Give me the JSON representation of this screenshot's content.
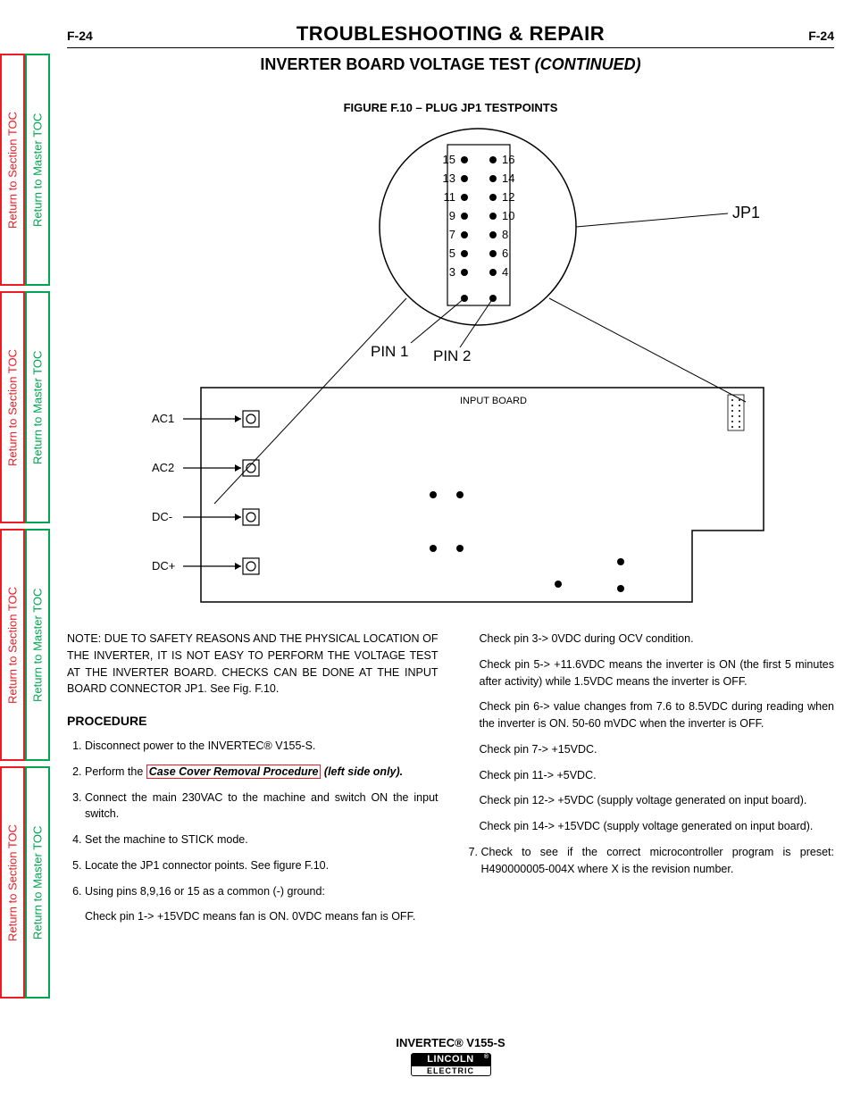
{
  "page_number": "F-24",
  "header_title": "TROUBLESHOOTING & REPAIR",
  "subtitle_main": "INVERTER BOARD VOLTAGE TEST ",
  "subtitle_cont": "(CONTINUED)",
  "figure_caption": "FIGURE F.10 – PLUG JP1 TESTPOINTS",
  "side_tabs": {
    "section": "Return to Section TOC",
    "master": "Return to Master TOC"
  },
  "diagram": {
    "jp1_label": "JP1",
    "pin1_label": "PIN 1",
    "pin2_label": "PIN 2",
    "input_board_label": "INPUT BOARD",
    "terminals": [
      "AC1",
      "AC2",
      "DC-",
      "DC+"
    ],
    "pin_numbers_left": [
      "15",
      "13",
      "11",
      "9",
      "7",
      "5",
      "3"
    ],
    "pin_numbers_right": [
      "16",
      "14",
      "12",
      "10",
      "8",
      "6",
      "4"
    ]
  },
  "note": {
    "label": "NOTE:",
    "text": "DUE TO SAFETY REASONS AND THE PHYSICAL LOCATION OF THE INVERTER, IT IS NOT EASY TO PERFORM THE VOLTAGE TEST AT THE INVERTER BOARD. CHECKS CAN BE DONE AT THE INPUT BOARD CONNECTOR JP1. See Fig. F.10."
  },
  "procedure_heading": "PROCEDURE",
  "procedure": {
    "s1": "Disconnect power to the INVERTEC® V155-S.",
    "s2a": "Perform the ",
    "s2_link": "Case Cover Removal Procedure",
    "s2b": " (left side only).",
    "s3": "Connect the main 230VAC to the machine and switch ON the input switch.",
    "s4": "Set the machine to STICK mode.",
    "s5": "Locate the JP1 connector points. See figure F.10.",
    "s6": "Using pins 8,9,16 or 15 as a common (-) ground:",
    "s6_sub": "Check pin 1-> +15VDC means fan is ON.  0VDC means fan is OFF."
  },
  "checks": {
    "c3": "Check pin 3->  0VDC during OCV condition.",
    "c5": "Check pin 5-> +11.6VDC means the inverter is ON (the first 5 minutes after activity) while 1.5VDC means the inverter is OFF.",
    "c6": "Check pin 6-> value changes from 7.6 to 8.5VDC during reading when the inverter is ON.  50-60 mVDC when the inverter is OFF.",
    "c7": "Check pin 7-> +15VDC.",
    "c11": "Check pin 11-> +5VDC.",
    "c12": "Check pin 12-> +5VDC (supply voltage generated on input board).",
    "c14": "Check pin 14-> +15VDC (supply voltage generated on input board)."
  },
  "step7": "Check to see if the correct microcontroller program is preset: H490000005-004X where X is the revision number.",
  "footer_model": "INVERTEC® V155-S",
  "logo": {
    "top": "LINCOLN",
    "bottom": "ELECTRIC"
  },
  "colors": {
    "red": "#ed1c24",
    "green": "#00a651",
    "black": "#000000",
    "white": "#ffffff"
  }
}
